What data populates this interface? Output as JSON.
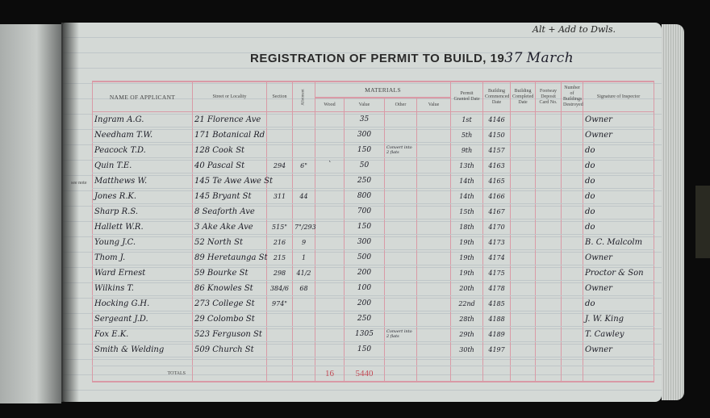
{
  "header": {
    "title_prefix": "REGISTRATION OF PERMIT TO BUILD, 19",
    "title_year": "37",
    "title_month": "March",
    "top_note": "Alt + Add to Dwls.",
    "margin_note": "see note"
  },
  "columns": {
    "name": "NAME OF APPLICANT",
    "street": "Street or Locality",
    "section": "Section",
    "allotment": "Allotment",
    "materials": "MATERIALS",
    "wood": "Wood",
    "value": "Value",
    "other": "Other",
    "other_value": "Value",
    "permit_granted": "Permit Granted Date",
    "commenced": "Building Commenced Date",
    "completed": "Building Completed Date",
    "footway": "Footway Deposit Card No.",
    "destroyed": "Number of Buildings Destroyed",
    "signature": "Signature of Inspector"
  },
  "rows": [
    {
      "name": "Ingram A.G.",
      "street": "21 Florence Ave",
      "section": "",
      "allotment": "",
      "wood": "",
      "value": "35",
      "other": "",
      "permit": "1st",
      "commenced": "4146",
      "signature": "Owner"
    },
    {
      "name": "Needham T.W.",
      "street": "171 Botanical Rd",
      "section": "",
      "allotment": "",
      "wood": "",
      "value": "300",
      "other": "",
      "permit": "5th",
      "commenced": "4150",
      "signature": "Owner"
    },
    {
      "name": "Peacock T.D.",
      "street": "128 Cook St",
      "section": "",
      "allotment": "",
      "wood": "",
      "value": "150",
      "other": "Convert into 2 flats",
      "permit": "9th",
      "commenced": "4157",
      "signature": "do"
    },
    {
      "name": "Quin T.E.",
      "street": "40 Pascal St",
      "section": "294",
      "allotment": "6\"",
      "wood": "`",
      "value": "50",
      "other": "",
      "permit": "13th",
      "commenced": "4163",
      "signature": "do"
    },
    {
      "name": "Matthews W.",
      "street": "145 Te Awe Awe St",
      "section": "",
      "allotment": "",
      "wood": "",
      "value": "250",
      "other": "",
      "permit": "14th",
      "commenced": "4165",
      "signature": "do"
    },
    {
      "name": "Jones R.K.",
      "street": "145 Bryant St",
      "section": "311",
      "allotment": "44",
      "wood": "",
      "value": "800",
      "other": "",
      "permit": "14th",
      "commenced": "4166",
      "signature": "do"
    },
    {
      "name": "Sharp R.S.",
      "street": "8 Seaforth Ave",
      "section": "",
      "allotment": "",
      "wood": "",
      "value": "700",
      "other": "",
      "permit": "15th",
      "commenced": "4167",
      "signature": "do"
    },
    {
      "name": "Hallett W.R.",
      "street": "3 Ake Ake Ave",
      "section": "515\"",
      "allotment": "7\"/293",
      "wood": "",
      "value": "150",
      "other": "",
      "permit": "18th",
      "commenced": "4170",
      "signature": "do"
    },
    {
      "name": "Young J.C.",
      "street": "52 North St",
      "section": "216",
      "allotment": "9",
      "wood": "",
      "value": "300",
      "other": "",
      "permit": "19th",
      "commenced": "4173",
      "signature": "B. C. Malcolm"
    },
    {
      "name": "Thom J.",
      "street": "89 Heretaunga St",
      "section": "215",
      "allotment": "1",
      "wood": "",
      "value": "500",
      "other": "",
      "permit": "19th",
      "commenced": "4174",
      "signature": "Owner"
    },
    {
      "name": "Ward Ernest",
      "street": "59 Bourke St",
      "section": "298",
      "allotment": "41/2",
      "wood": "",
      "value": "200",
      "other": "",
      "permit": "19th",
      "commenced": "4175",
      "signature": "Proctor & Son"
    },
    {
      "name": "Wilkins T.",
      "street": "86 Knowles St",
      "section": "384/6",
      "allotment": "68",
      "wood": "",
      "value": "100",
      "other": "",
      "permit": "20th",
      "commenced": "4178",
      "signature": "Owner"
    },
    {
      "name": "Hocking G.H.",
      "street": "273 College St",
      "section": "974\"",
      "allotment": "",
      "wood": "",
      "value": "200",
      "other": "",
      "permit": "22nd",
      "commenced": "4185",
      "signature": "do"
    },
    {
      "name": "Sergeant J.D.",
      "street": "29 Colombo St",
      "section": "",
      "allotment": "",
      "wood": "",
      "value": "250",
      "other": "",
      "permit": "28th",
      "commenced": "4188",
      "signature": "J. W. King"
    },
    {
      "name": "Fox E.K.",
      "street": "523 Ferguson St",
      "section": "",
      "allotment": "",
      "wood": "",
      "value": "1305",
      "other": "Convert into 2 flats",
      "permit": "29th",
      "commenced": "4189",
      "signature": "T. Cawley"
    },
    {
      "name": "Smith & Welding",
      "street": "509 Church St",
      "section": "",
      "allotment": "",
      "wood": "",
      "value": "150",
      "other": "",
      "permit": "30th",
      "commenced": "4197",
      "signature": "Owner"
    }
  ],
  "totals": {
    "label": "TOTALS",
    "count": "16",
    "value": "5440"
  },
  "colors": {
    "page": "#d4d9d6",
    "rule_red": "#d99aa6",
    "ink": "#1b1b25",
    "total_ink": "#c24a55"
  }
}
